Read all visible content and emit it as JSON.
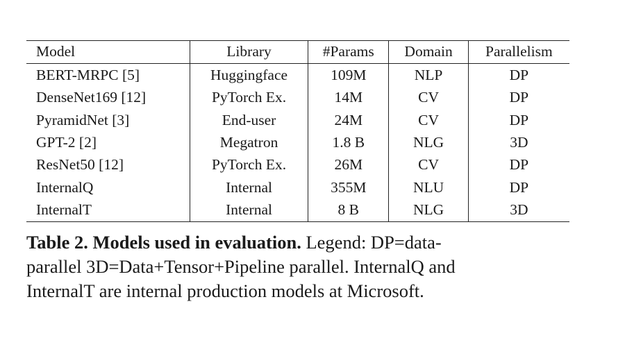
{
  "table": {
    "headers": [
      "Model",
      "Library",
      "#Params",
      "Domain",
      "Parallelism"
    ],
    "rows": [
      [
        "BERT-MRPC [5]",
        "Huggingface",
        "109M",
        "NLP",
        "DP"
      ],
      [
        "DenseNet169 [12]",
        "PyTorch Ex.",
        "14M",
        "CV",
        "DP"
      ],
      [
        "PyramidNet [3]",
        "End-user",
        "24M",
        "CV",
        "DP"
      ],
      [
        "GPT-2 [2]",
        "Megatron",
        "1.8 B",
        "NLG",
        "3D"
      ],
      [
        "ResNet50 [12]",
        "PyTorch Ex.",
        "26M",
        "CV",
        "DP"
      ],
      [
        "InternalQ",
        "Internal",
        "355M",
        "NLU",
        "DP"
      ],
      [
        "InternalT",
        "Internal",
        "8 B",
        "NLG",
        "3D"
      ]
    ]
  },
  "caption": {
    "lead": "Table 2. Models used in evaluation.",
    "line1_rest": " Legend: DP=data-",
    "line2": "parallel 3D=Data+Tensor+Pipeline parallel. InternalQ and",
    "line3": "InternalT are internal production models at Microsoft."
  }
}
